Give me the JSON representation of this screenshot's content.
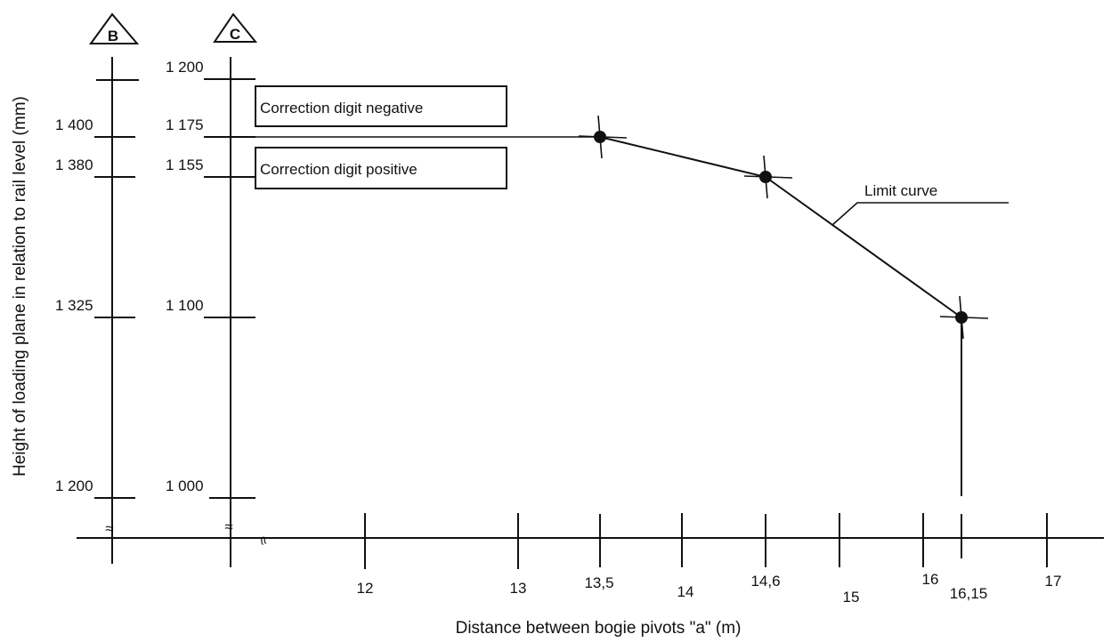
{
  "chart_data": {
    "type": "line",
    "title": "",
    "xlabel": "Distance between bogie pivots \"a\" (m)",
    "ylabel": "Height of loading plane in relation to rail level (mm)",
    "x_ticks": [
      12,
      13,
      13.5,
      14,
      14.6,
      15,
      16,
      16.15,
      17
    ],
    "x_tick_labels": [
      "12",
      "13",
      "13,5",
      "14",
      "14,6",
      "15",
      "16",
      "16,15",
      "17"
    ],
    "scale_B": {
      "marker": "B",
      "ticks": [
        1400,
        1380,
        1325,
        1200
      ],
      "tick_labels": [
        "1 400",
        "1 380",
        "1 325",
        "1 200"
      ]
    },
    "scale_C": {
      "marker": "C",
      "ticks": [
        1200,
        1175,
        1155,
        1100,
        1000
      ],
      "tick_labels": [
        "1 200",
        "1 175",
        "1 155",
        "1 100",
        "1 000"
      ]
    },
    "series": [
      {
        "name": "Limit curve",
        "x": [
          13.5,
          14.6,
          16.15
        ],
        "y_C": [
          1175,
          1155,
          1100
        ]
      }
    ],
    "reference_level_C": 1175,
    "annotations": {
      "negative": "Correction digit negative",
      "positive": "Correction digit positive",
      "curve_label": "Limit curve"
    },
    "axis_break_symbol": "≈",
    "x_break_symbol": "≈",
    "ylim_C": [
      1000,
      1200
    ],
    "grid": false
  }
}
